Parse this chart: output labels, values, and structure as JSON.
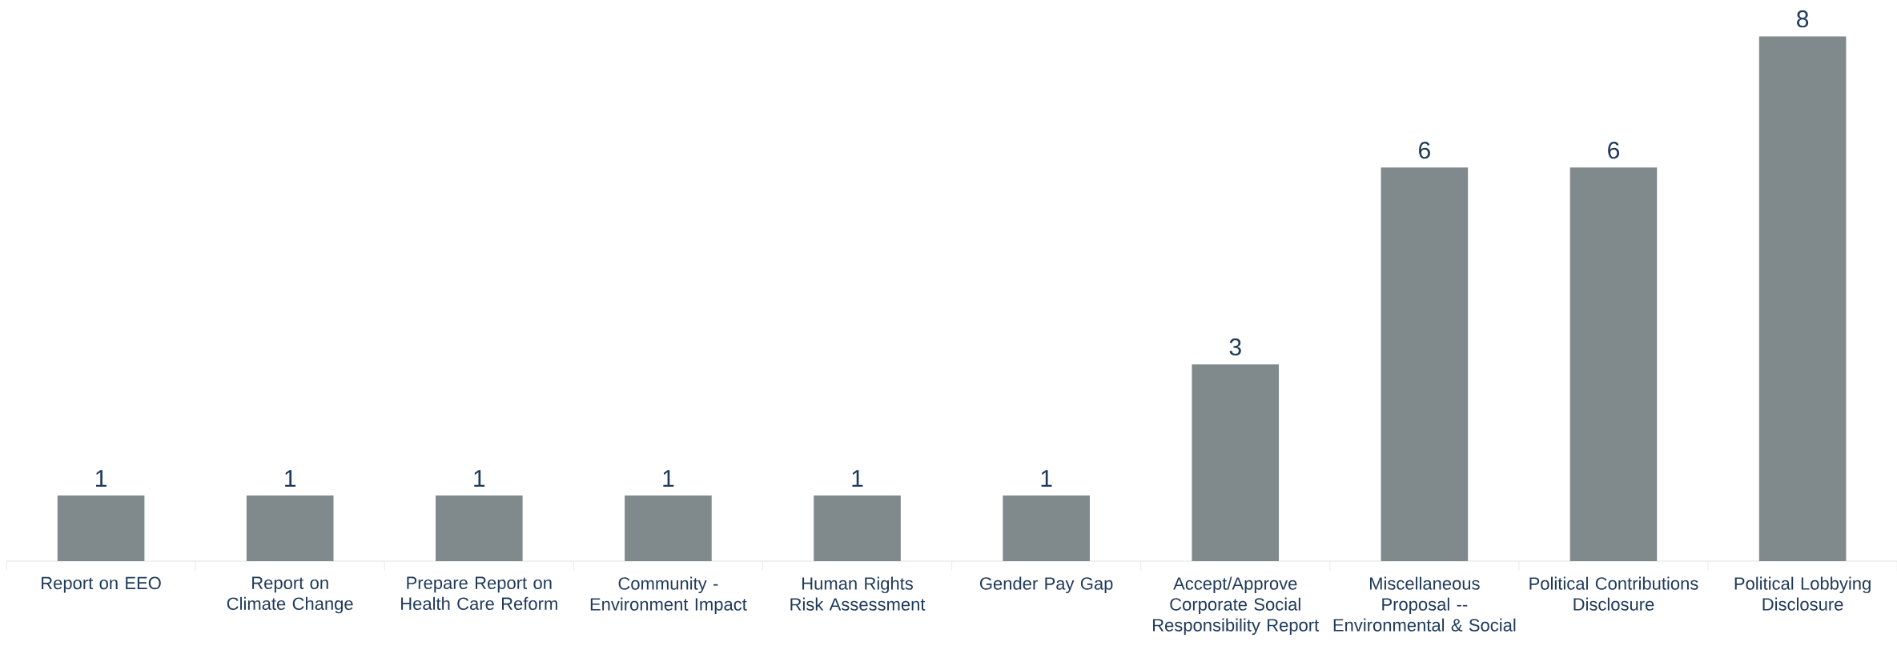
{
  "chart_data": {
    "type": "bar",
    "categories": [
      "Report on EEO",
      "Report on Climate Change",
      "Prepare Report on Health Care Reform",
      "Community - Environment Impact",
      "Human Rights Risk Assessment",
      "Gender Pay Gap",
      "Accept/Approve Corporate Social Responsibility Report",
      "Miscellaneous Proposal -- Environmental & Social",
      "Political Contributions Disclosure",
      "Political Lobbying Disclosure"
    ],
    "values": [
      1,
      1,
      1,
      1,
      1,
      1,
      3,
      6,
      6,
      8
    ],
    "color": "#808a8c",
    "data_labels": true
  }
}
